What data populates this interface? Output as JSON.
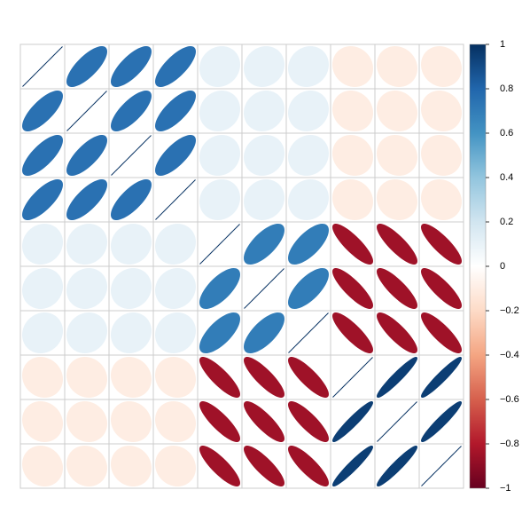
{
  "chart_data": {
    "type": "corrplot",
    "values": [
      [
        1,
        0.75,
        0.75,
        0.75,
        0.1,
        0.1,
        0.1,
        -0.1,
        -0.1,
        -0.1
      ],
      [
        0.75,
        1,
        0.75,
        0.75,
        0.1,
        0.1,
        0.1,
        -0.1,
        -0.1,
        -0.1
      ],
      [
        0.75,
        0.75,
        1,
        0.75,
        0.1,
        0.1,
        0.1,
        -0.1,
        -0.1,
        -0.1
      ],
      [
        0.75,
        0.75,
        0.75,
        1,
        0.1,
        0.1,
        0.1,
        -0.1,
        -0.1,
        -0.1
      ],
      [
        0.1,
        0.1,
        0.1,
        0.1,
        1,
        0.7,
        0.7,
        -0.85,
        -0.85,
        -0.85
      ],
      [
        0.1,
        0.1,
        0.1,
        0.1,
        0.7,
        1,
        0.7,
        -0.85,
        -0.85,
        -0.85
      ],
      [
        0.1,
        0.1,
        0.1,
        0.1,
        0.7,
        0.7,
        1,
        -0.85,
        -0.85,
        -0.85
      ],
      [
        -0.1,
        -0.1,
        -0.1,
        -0.1,
        -0.85,
        -0.85,
        -0.85,
        1,
        0.95,
        0.95
      ],
      [
        -0.1,
        -0.1,
        -0.1,
        -0.1,
        -0.85,
        -0.85,
        -0.85,
        0.95,
        1,
        0.95
      ],
      [
        -0.1,
        -0.1,
        -0.1,
        -0.1,
        -0.85,
        -0.85,
        -0.85,
        0.95,
        0.95,
        1
      ]
    ],
    "ylim": [
      -1,
      1
    ],
    "yticks": [
      {
        "value": -1,
        "label": "−1"
      },
      {
        "value": -0.8,
        "label": "−0.8"
      },
      {
        "value": -0.6,
        "label": "−0.6"
      },
      {
        "value": -0.4,
        "label": "−0.4"
      },
      {
        "value": -0.2,
        "label": "−0.2"
      },
      0,
      0.2,
      0.4,
      0.6,
      0.8,
      1
    ],
    "colorscale": [
      "#67001F",
      "#B2182B",
      "#D6604D",
      "#F4A582",
      "#FDDBC7",
      "#FFFFFF",
      "#D1E5F0",
      "#92C5DE",
      "#4393C3",
      "#2166AC",
      "#053061"
    ]
  }
}
